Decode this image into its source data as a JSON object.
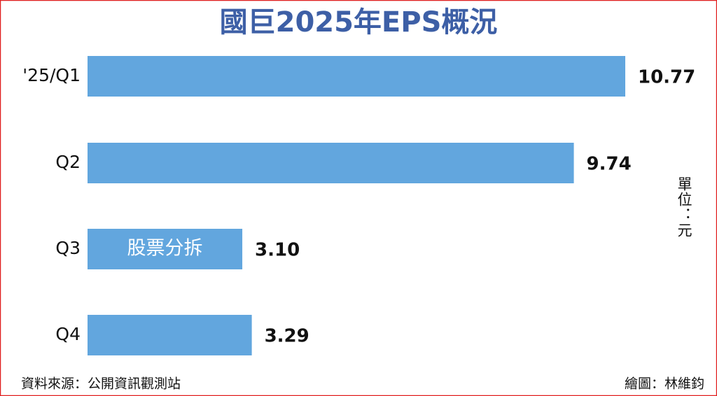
{
  "chart_data": {
    "type": "hbar",
    "title": "國巨2025年EPS概況",
    "categories": [
      "'25/Q1",
      "Q2",
      "Q3",
      "Q4"
    ],
    "values": [
      10.77,
      9.74,
      3.1,
      3.29
    ],
    "value_labels": [
      "10.77",
      "9.74",
      "3.10",
      "3.29"
    ],
    "color": "#62a6de",
    "annotation": "股票分拆",
    "unit_label": "單位：元",
    "source": "資料來源：公開資訊觀測站",
    "credit": "繪圖：林維鈞"
  }
}
